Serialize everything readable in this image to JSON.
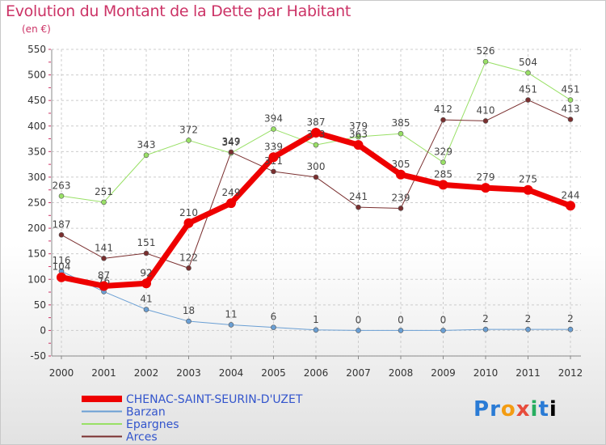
{
  "chart_data": {
    "type": "line",
    "title": "Evolution du Montant de la Dette par Habitant",
    "subtitle": "(en €)",
    "xlabel": "",
    "ylabel": "",
    "ylim": [
      -50,
      550
    ],
    "yticks": [
      -50,
      0,
      50,
      100,
      150,
      200,
      250,
      300,
      350,
      400,
      450,
      500,
      550
    ],
    "x": [
      "2000",
      "2001",
      "2002",
      "2003",
      "2004",
      "2005",
      "2006",
      "2007",
      "2008",
      "2009",
      "2010",
      "2011",
      "2012"
    ],
    "grid": true,
    "legend_position": "bottom-left",
    "series": [
      {
        "name": "CHENAC-SAINT-SEURIN-D'UZET",
        "color": "#ee0000",
        "width": 7,
        "values": [
          104,
          87,
          92,
          210,
          249,
          339,
          387,
          363,
          305,
          285,
          279,
          275,
          244
        ]
      },
      {
        "name": "Barzan",
        "color": "#6a9fd4",
        "width": 1,
        "values": [
          116,
          76,
          41,
          18,
          11,
          6,
          1,
          0,
          0,
          0,
          2,
          2,
          2
        ]
      },
      {
        "name": "Epargnes",
        "color": "#99e066",
        "width": 1,
        "values": [
          263,
          251,
          343,
          372,
          347,
          394,
          363,
          379,
          385,
          329,
          526,
          504,
          451
        ]
      },
      {
        "name": "Arces",
        "color": "#7a2f2f",
        "width": 1,
        "values": [
          187,
          141,
          151,
          122,
          349,
          311,
          300,
          241,
          239,
          412,
          410,
          451,
          413
        ]
      }
    ],
    "colors": {
      "title": "#cc3366",
      "grid": "#cccccc",
      "axis": "#888888",
      "tick_marks": "#cc3366",
      "legend_text": "#3355cc"
    }
  },
  "logo": {
    "letters": [
      "P",
      "r",
      "o",
      "x",
      "i",
      "t",
      "i"
    ]
  }
}
